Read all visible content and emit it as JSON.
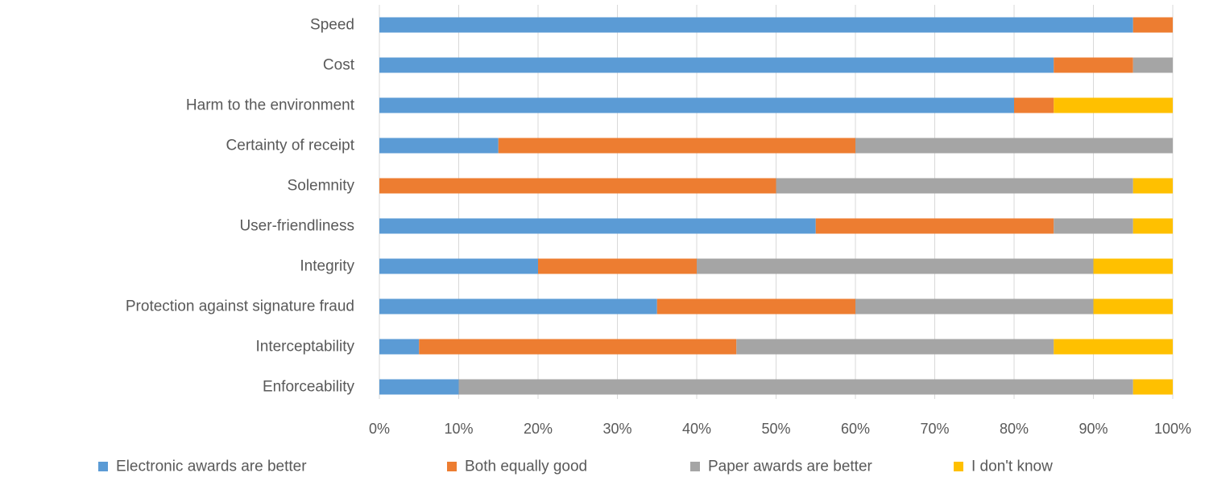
{
  "chart_data": {
    "type": "bar",
    "orientation": "horizontal",
    "stacked": true,
    "percent_stacked": true,
    "categories": [
      "Speed",
      "Cost",
      "Harm to the environment",
      "Certainty of receipt",
      "Solemnity",
      "User-friendliness",
      "Integrity",
      "Protection against signature fraud",
      "Interceptability",
      "Enforceability"
    ],
    "series": [
      {
        "name": "Electronic awards are better",
        "color": "#5b9bd5",
        "values": [
          95,
          85,
          80,
          15,
          0,
          55,
          20,
          35,
          5,
          10
        ]
      },
      {
        "name": "Both equally good",
        "color": "#ed7d31",
        "values": [
          5,
          10,
          5,
          45,
          50,
          30,
          20,
          25,
          40,
          0
        ]
      },
      {
        "name": "Paper awards are better",
        "color": "#a5a5a5",
        "values": [
          0,
          5,
          0,
          40,
          45,
          10,
          50,
          30,
          40,
          85
        ]
      },
      {
        "name": "I don't know",
        "color": "#ffc000",
        "values": [
          0,
          0,
          15,
          0,
          5,
          5,
          10,
          10,
          15,
          5
        ]
      }
    ],
    "x_ticks": [
      "0%",
      "10%",
      "20%",
      "30%",
      "40%",
      "50%",
      "60%",
      "70%",
      "80%",
      "90%",
      "100%"
    ],
    "xlim": [
      0,
      100
    ],
    "grid": "vertical",
    "legend_position": "bottom",
    "title": "",
    "xlabel": "",
    "ylabel": ""
  }
}
